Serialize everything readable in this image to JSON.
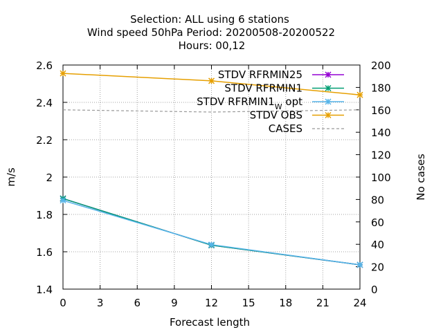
{
  "title_lines": [
    "Selection: ALL using     6 stations",
    "Wind speed 50hPa   Period: 20200508-20200522",
    "Hours:  00,12"
  ],
  "chart_data": {
    "type": "line",
    "xlabel": "Forecast length",
    "ylabel": "m/s",
    "y2label": "No cases",
    "xlim": [
      0,
      24
    ],
    "ylim": [
      1.4,
      2.6
    ],
    "y2lim": [
      0,
      200
    ],
    "xticks": [
      0,
      3,
      6,
      9,
      12,
      15,
      18,
      21,
      24
    ],
    "yticks": [
      1.4,
      1.6,
      1.8,
      2,
      2.2,
      2.4,
      2.6
    ],
    "y2ticks": [
      0,
      20,
      40,
      60,
      80,
      100,
      120,
      140,
      160,
      180,
      200
    ],
    "grid": true,
    "legend_position": "top-right",
    "series": [
      {
        "name": "STDV RFRMIN25",
        "axis": "y",
        "color": "#9400d3",
        "dash": false,
        "marker": "x",
        "x": [
          0,
          12,
          24
        ],
        "values": [
          1.885,
          1.635,
          1.53
        ]
      },
      {
        "name": "STDV RFRMIN1",
        "axis": "y",
        "color": "#009e73",
        "dash": false,
        "marker": "x",
        "x": [
          0,
          12,
          24
        ],
        "values": [
          1.885,
          1.635,
          1.53
        ]
      },
      {
        "name": "STDV RFRMIN1_W opt",
        "axis": "y",
        "color": "#56b4e9",
        "dash": false,
        "marker": "x",
        "x": [
          0,
          12,
          24
        ],
        "values": [
          1.875,
          1.638,
          1.53
        ]
      },
      {
        "name": "STDV OBS",
        "axis": "y",
        "color": "#e69f00",
        "dash": false,
        "marker": "x",
        "x": [
          0,
          12,
          24
        ],
        "values": [
          2.555,
          2.515,
          2.44
        ]
      },
      {
        "name": "CASES",
        "axis": "y2",
        "color": "#999999",
        "dash": true,
        "marker": "none",
        "x": [
          0,
          12,
          24
        ],
        "values": [
          160,
          158,
          160
        ]
      }
    ]
  }
}
